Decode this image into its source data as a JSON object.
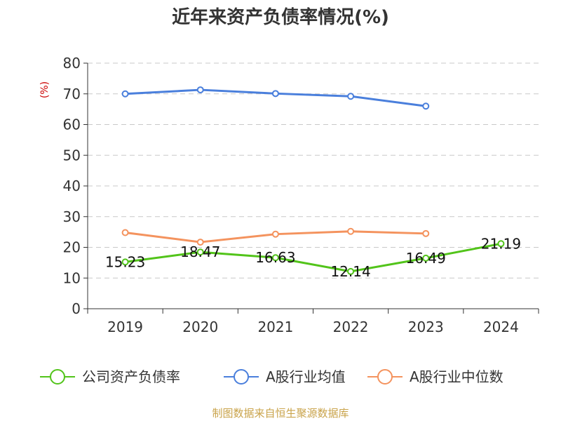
{
  "chart_data": {
    "type": "line",
    "title": "近年来资产负债率情况(%)",
    "ylabel": "(%)",
    "xlabel": "",
    "categories": [
      "2019",
      "2020",
      "2021",
      "2022",
      "2023",
      "2024"
    ],
    "ylim": [
      0,
      80
    ],
    "yticks": [
      "0",
      "10",
      "20",
      "30",
      "40",
      "50",
      "60",
      "70",
      "80"
    ],
    "grid": true,
    "legend_position": "bottom",
    "series": [
      {
        "name": "公司资产负债率",
        "color": "#52c41a",
        "values": [
          15.23,
          18.47,
          16.63,
          12.14,
          16.49,
          21.19
        ],
        "labels": [
          "15.23",
          "18.47",
          "16.63",
          "12.14",
          "16.49",
          "21.19"
        ]
      },
      {
        "name": "A股行业均值",
        "color": "#4a7fdc",
        "values": [
          70.0,
          71.3,
          70.1,
          69.2,
          66.0,
          null
        ]
      },
      {
        "name": "A股行业中位数",
        "color": "#f4935e",
        "values": [
          24.8,
          21.7,
          24.3,
          25.2,
          24.5,
          null
        ]
      }
    ]
  },
  "source": "制图数据来自恒生聚源数据库"
}
